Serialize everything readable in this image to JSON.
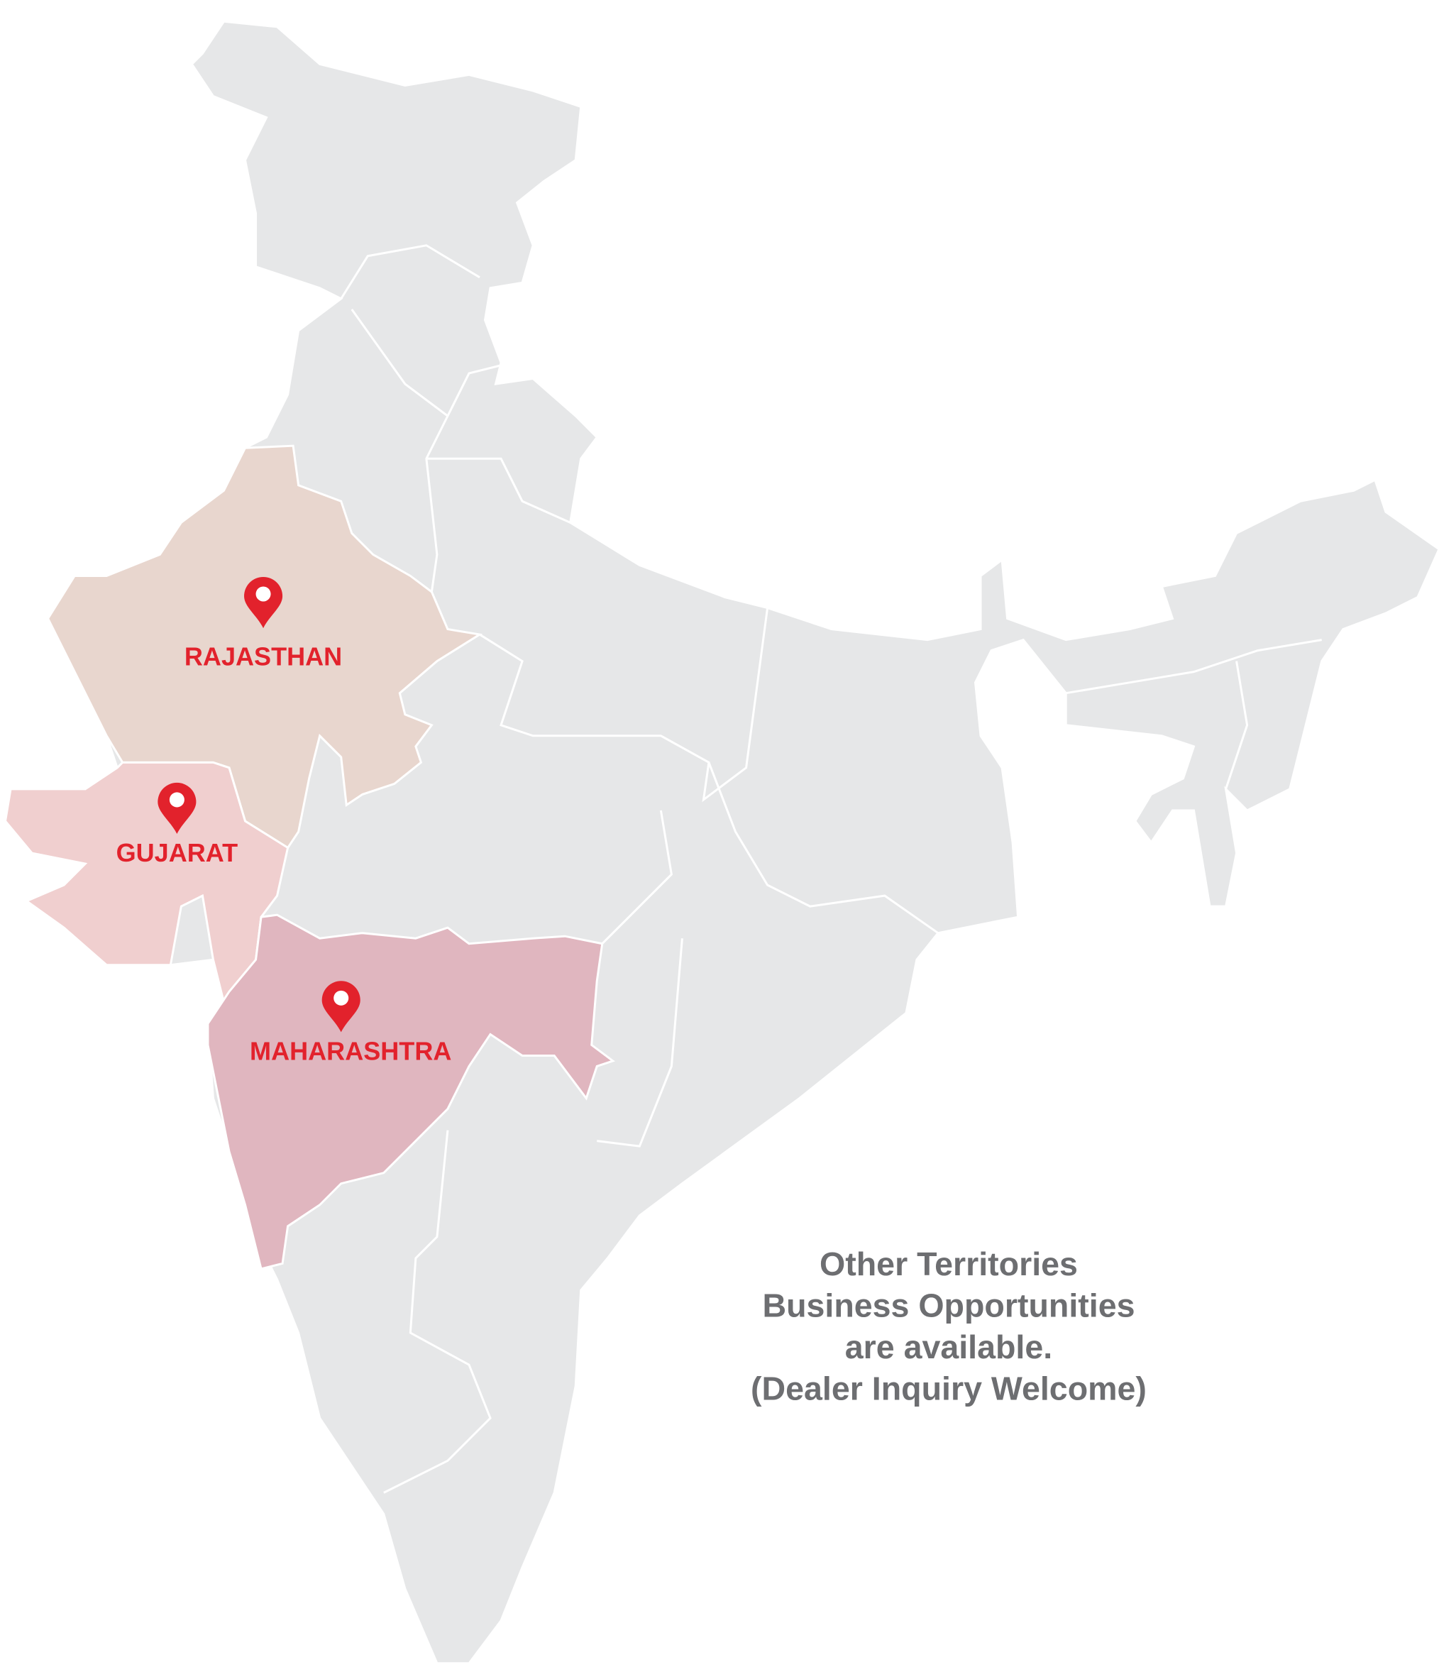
{
  "regions": [
    "RAJASTHAN",
    "GUJARAT",
    "MAHARASHTRA"
  ],
  "note": [
    "Other Territories",
    "Business Opportunities",
    "are available.",
    "(Dealer Inquiry Welcome)"
  ]
}
